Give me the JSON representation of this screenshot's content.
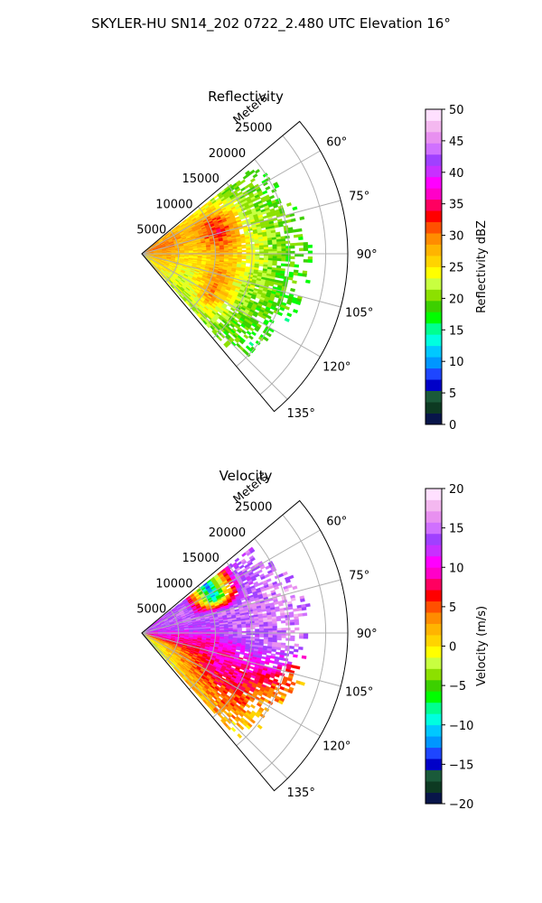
{
  "figure": {
    "title": "SKYLER-HU  SN14_202  0722_2.480 UTC Elevation 16°"
  },
  "chart_data": [
    {
      "type": "polar-sector-ppi",
      "title": "Reflectivity",
      "range_axis_label": "Meters",
      "range_ticks": [
        "5000",
        "10000",
        "15000",
        "20000",
        "25000"
      ],
      "range_tick_values": [
        5000,
        10000,
        15000,
        20000,
        25000
      ],
      "range_max": 28000,
      "azimuth_ticks": [
        "60°",
        "75°",
        "90°",
        "105°",
        "120°",
        "135°"
      ],
      "azimuth_tick_values": [
        60,
        75,
        90,
        105,
        120,
        135
      ],
      "azimuth_range": [
        50,
        140
      ],
      "grid": true,
      "colorbar": {
        "label": "Reflectivity dBZ",
        "min": 0,
        "max": 50,
        "ticks": [
          "0",
          "5",
          "10",
          "15",
          "20",
          "25",
          "30",
          "35",
          "40",
          "45",
          "50"
        ],
        "tick_values": [
          0,
          5,
          10,
          15,
          20,
          25,
          30,
          35,
          40,
          45,
          50
        ],
        "colors": [
          "#08154a",
          "#0d3a22",
          "#1a5a3a",
          "#0000c8",
          "#1e46ff",
          "#0096ff",
          "#00c8ff",
          "#00ffe0",
          "#00ff90",
          "#00ff00",
          "#3cd000",
          "#8ce000",
          "#c8ff40",
          "#ffff00",
          "#ffd400",
          "#ffb400",
          "#ff8c00",
          "#ff5000",
          "#ff0000",
          "#ff0060",
          "#ff00c8",
          "#ff00ff",
          "#c830ff",
          "#a040ff",
          "#d070ff",
          "#e890f0",
          "#f4b8f0",
          "#ffe0ff"
        ]
      },
      "field_samples": {
        "description_of_units": "azimuth deg, range m, value dBZ",
        "azimuth": [
          55,
          65,
          75,
          85,
          95,
          105,
          115,
          125,
          135
        ],
        "range": [
          3000,
          7000,
          11000,
          15000,
          19000,
          23000
        ],
        "values": [
          [
            28,
            26,
            24,
            20,
            18,
            17
          ],
          [
            30,
            28,
            32,
            22,
            19,
            18
          ],
          [
            30,
            27,
            34,
            23,
            20,
            18
          ],
          [
            29,
            26,
            30,
            24,
            20,
            19
          ],
          [
            28,
            25,
            27,
            23,
            19,
            18
          ],
          [
            27,
            24,
            29,
            22,
            19,
            18
          ],
          [
            26,
            23,
            30,
            21,
            19,
            17
          ],
          [
            25,
            22,
            28,
            20,
            18,
            17
          ],
          [
            24,
            22,
            22,
            20,
            18,
            17
          ]
        ]
      }
    },
    {
      "type": "polar-sector-ppi",
      "title": "Velocity",
      "range_axis_label": "Meters",
      "range_ticks": [
        "5000",
        "10000",
        "15000",
        "20000",
        "25000"
      ],
      "range_tick_values": [
        5000,
        10000,
        15000,
        20000,
        25000
      ],
      "range_max": 28000,
      "azimuth_ticks": [
        "60°",
        "75°",
        "90°",
        "105°",
        "120°",
        "135°"
      ],
      "azimuth_tick_values": [
        60,
        75,
        90,
        105,
        120,
        135
      ],
      "azimuth_range": [
        50,
        140
      ],
      "grid": true,
      "colorbar": {
        "label": "Velocity (m/s)",
        "min": -20,
        "max": 20,
        "ticks": [
          "−20",
          "−15",
          "−10",
          "−5",
          "0",
          "5",
          "10",
          "15",
          "20"
        ],
        "tick_values": [
          -20,
          -15,
          -10,
          -5,
          0,
          5,
          10,
          15,
          20
        ],
        "colors": [
          "#08154a",
          "#0d3a22",
          "#1a5a3a",
          "#0000c8",
          "#1e46ff",
          "#0096ff",
          "#00c8ff",
          "#00ffe0",
          "#00ff90",
          "#00ff00",
          "#3cd000",
          "#8ce000",
          "#c8ff40",
          "#ffff00",
          "#ffd400",
          "#ffb400",
          "#ff8c00",
          "#ff5000",
          "#ff0000",
          "#ff0060",
          "#ff00c8",
          "#ff00ff",
          "#c830ff",
          "#a040ff",
          "#d070ff",
          "#e890f0",
          "#f4b8f0",
          "#ffe0ff"
        ]
      },
      "field_samples": {
        "description_of_units": "azimuth deg, range m, value m/s",
        "azimuth": [
          55,
          65,
          75,
          85,
          95,
          105,
          115,
          125,
          135
        ],
        "range": [
          3000,
          7000,
          11000,
          15000,
          19000,
          23000
        ],
        "values": [
          [
            13,
            14,
            -12,
            14,
            14,
            13
          ],
          [
            14,
            15,
            -11,
            14,
            15,
            14
          ],
          [
            13,
            14,
            15,
            15,
            16,
            15
          ],
          [
            12,
            13,
            14,
            15,
            16,
            15
          ],
          [
            10,
            10,
            11,
            14,
            15,
            14
          ],
          [
            9,
            8,
            9,
            10,
            10,
            3
          ],
          [
            2,
            4,
            9,
            8,
            4,
            2
          ],
          [
            0,
            3,
            5,
            6,
            2,
            1
          ],
          [
            -2,
            1,
            2,
            3,
            1,
            0
          ]
        ]
      }
    }
  ]
}
